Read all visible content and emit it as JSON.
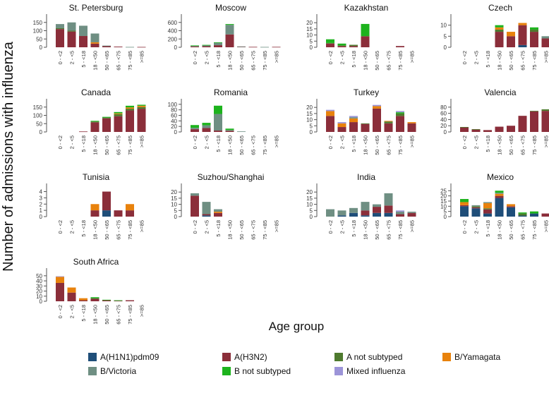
{
  "chart_data": {
    "type": "bar",
    "stacked": true,
    "ylabel": "Number of admissions with influenza",
    "xlabel": "Age group",
    "categories": [
      "0 - <2",
      "2 - <5",
      "5 - <18",
      "18 - <50",
      "50 - <65",
      "65 - <75",
      "75 - <85",
      ">=85"
    ],
    "legend": [
      {
        "name": "A(H1N1)pdm09",
        "color": "#1f4e79"
      },
      {
        "name": "A(H3N2)",
        "color": "#8b2e3a"
      },
      {
        "name": "A not subtyped",
        "color": "#4e7a2e"
      },
      {
        "name": "B/Yamagata",
        "color": "#e8820c"
      },
      {
        "name": "B/Victoria",
        "color": "#6f8f83"
      },
      {
        "name": "B not subtyped",
        "color": "#1db31d"
      },
      {
        "name": "Mixed influenza",
        "color": "#9c94d8"
      }
    ],
    "panels": [
      {
        "title": "St. Petersburg",
        "ymax": 200,
        "ticks": [
          0,
          50,
          100,
          150
        ],
        "series": [
          [
            0,
            0,
            0,
            0,
            0,
            0,
            0,
            0
          ],
          [
            110,
            95,
            68,
            22,
            8,
            4,
            0,
            2
          ],
          [
            5,
            5,
            0,
            0,
            0,
            0,
            0,
            0
          ],
          [
            0,
            0,
            0,
            8,
            0,
            0,
            0,
            0
          ],
          [
            25,
            50,
            62,
            53,
            2,
            0,
            2,
            0
          ],
          [
            0,
            0,
            0,
            0,
            0,
            0,
            0,
            0
          ],
          [
            0,
            0,
            0,
            0,
            0,
            0,
            0,
            0
          ]
        ]
      },
      {
        "title": "Moscow",
        "ymax": 800,
        "ticks": [
          0,
          200,
          400,
          600
        ],
        "series": [
          [
            0,
            0,
            0,
            0,
            0,
            0,
            0,
            0
          ],
          [
            20,
            25,
            50,
            310,
            15,
            10,
            0,
            10
          ],
          [
            0,
            0,
            0,
            0,
            0,
            0,
            0,
            0
          ],
          [
            0,
            0,
            0,
            0,
            0,
            0,
            0,
            0
          ],
          [
            15,
            25,
            60,
            230,
            5,
            0,
            8,
            0
          ],
          [
            10,
            8,
            10,
            20,
            0,
            0,
            0,
            0
          ],
          [
            0,
            0,
            0,
            0,
            0,
            0,
            0,
            0
          ]
        ]
      },
      {
        "title": "Kazakhstan",
        "ymax": 27,
        "ticks": [
          0,
          5,
          10,
          15,
          20
        ],
        "series": [
          [
            0,
            0,
            0,
            0,
            0,
            0,
            0,
            0
          ],
          [
            3,
            1,
            1,
            9,
            0,
            0,
            1,
            0
          ],
          [
            0.5,
            0.5,
            1,
            0,
            0,
            0,
            0,
            0
          ],
          [
            0,
            0,
            0,
            0,
            0,
            0,
            0,
            0
          ],
          [
            0,
            0,
            0,
            0,
            0,
            0,
            0,
            0
          ],
          [
            3,
            1.5,
            0,
            10,
            0,
            0,
            0,
            0
          ],
          [
            0,
            0,
            0,
            0,
            0,
            0,
            0,
            0
          ]
        ]
      },
      {
        "title": "Czech",
        "ymax": 15,
        "ticks": [
          0,
          5,
          10
        ],
        "series": [
          [
            0,
            0,
            0,
            0,
            0,
            1,
            0,
            0
          ],
          [
            0,
            0,
            0,
            7,
            5,
            9,
            7,
            4
          ],
          [
            0,
            0,
            0,
            1,
            0,
            0,
            1,
            0
          ],
          [
            0,
            0,
            0,
            1,
            2,
            1,
            0,
            0
          ],
          [
            0,
            0,
            0,
            0,
            0,
            0,
            0,
            1
          ],
          [
            0,
            0,
            0,
            1,
            0,
            0,
            1,
            0
          ],
          [
            0,
            0,
            0,
            0,
            0,
            0,
            0,
            0
          ]
        ]
      },
      {
        "title": "Canada",
        "ymax": 200,
        "ticks": [
          0,
          50,
          100,
          150
        ],
        "series": [
          [
            0,
            0,
            0,
            0,
            0,
            0,
            0,
            0
          ],
          [
            0,
            0,
            3,
            58,
            82,
            95,
            130,
            140
          ],
          [
            0,
            0,
            0,
            5,
            5,
            12,
            10,
            10
          ],
          [
            0,
            0,
            0,
            0,
            0,
            5,
            8,
            8
          ],
          [
            0,
            0,
            0,
            0,
            0,
            0,
            0,
            0
          ],
          [
            0,
            0,
            0,
            4,
            4,
            8,
            10,
            6
          ],
          [
            0,
            0,
            0,
            0,
            0,
            0,
            0,
            0
          ]
        ]
      },
      {
        "title": "Romania",
        "ymax": 120,
        "ticks": [
          0,
          20,
          40,
          60,
          80,
          100
        ],
        "series": [
          [
            0,
            0,
            0,
            0,
            0,
            0,
            0,
            0
          ],
          [
            10,
            14,
            5,
            4,
            0,
            0,
            0,
            0
          ],
          [
            0,
            0,
            0,
            0,
            0,
            0,
            0,
            0
          ],
          [
            0,
            0,
            0,
            0,
            0,
            0,
            0,
            0
          ],
          [
            5,
            10,
            60,
            3,
            2,
            0,
            0,
            0
          ],
          [
            10,
            9,
            30,
            5,
            0,
            0,
            0,
            0
          ],
          [
            0,
            0,
            0,
            0,
            0,
            0,
            0,
            0
          ]
        ]
      },
      {
        "title": "Turkey",
        "ymax": 27,
        "ticks": [
          0,
          5,
          10,
          15,
          20
        ],
        "series": [
          [
            0,
            0,
            0,
            0,
            0,
            0,
            0,
            0
          ],
          [
            13,
            4,
            8,
            6.5,
            19,
            7,
            13,
            7
          ],
          [
            0,
            0,
            0,
            0.5,
            0,
            1.5,
            2,
            0
          ],
          [
            4,
            3,
            3,
            0,
            2,
            0.5,
            0,
            1
          ],
          [
            0,
            0,
            1,
            0,
            0,
            0,
            0,
            0
          ],
          [
            0,
            0,
            0,
            0,
            0,
            0,
            1,
            0
          ],
          [
            1,
            1,
            1,
            0,
            1,
            0,
            1,
            0
          ]
        ]
      },
      {
        "title": "Valencia",
        "ymax": 107,
        "ticks": [
          0,
          20,
          40,
          60,
          80
        ],
        "series": [
          [
            0,
            0,
            0,
            0,
            0,
            0,
            0,
            0
          ],
          [
            15,
            8,
            6,
            17,
            20,
            52,
            67,
            68
          ],
          [
            1,
            1,
            0,
            0,
            0,
            0,
            1,
            5
          ],
          [
            0,
            0,
            0,
            0,
            0,
            0,
            0,
            0
          ],
          [
            0,
            0,
            0,
            0,
            0,
            0,
            0,
            0
          ],
          [
            0,
            0,
            0,
            0,
            0,
            0,
            0,
            0
          ],
          [
            0,
            0,
            0,
            0,
            0,
            0,
            0,
            0
          ]
        ]
      },
      {
        "title": "Tunisia",
        "ymax": 5.3,
        "ticks": [
          0,
          1,
          2,
          3,
          4
        ],
        "series": [
          [
            0,
            0,
            0,
            0,
            1,
            0,
            0,
            0
          ],
          [
            0,
            0,
            0,
            1,
            3,
            1,
            1,
            0
          ],
          [
            0,
            0,
            0,
            0,
            0,
            0,
            0,
            0
          ],
          [
            0,
            0,
            0,
            1,
            0,
            0,
            1,
            0
          ],
          [
            0,
            0,
            0,
            0,
            0,
            0,
            0,
            0
          ],
          [
            0,
            0,
            0,
            0,
            0,
            0,
            0,
            0
          ],
          [
            0,
            0,
            0,
            0,
            0,
            0,
            0,
            0
          ]
        ]
      },
      {
        "title": "Suzhou/Shanghai",
        "ymax": 27,
        "ticks": [
          0,
          5,
          10,
          15,
          20
        ],
        "series": [
          [
            0,
            1,
            0,
            0,
            0,
            0,
            0,
            0
          ],
          [
            17,
            1,
            3,
            0,
            0,
            0,
            0,
            0
          ],
          [
            0,
            0,
            0,
            0,
            0,
            0,
            0,
            0
          ],
          [
            0,
            0,
            1,
            0,
            0,
            0,
            0,
            0
          ],
          [
            2,
            10,
            2,
            0,
            0,
            0,
            0,
            0
          ],
          [
            0,
            0,
            0,
            0,
            0,
            0,
            0,
            0
          ],
          [
            0,
            0,
            0,
            0,
            0,
            0,
            0,
            0
          ]
        ]
      },
      {
        "title": "India",
        "ymax": 27,
        "ticks": [
          0,
          5,
          10,
          15,
          20
        ],
        "series": [
          [
            0,
            1,
            3,
            1,
            3,
            3,
            0,
            0
          ],
          [
            0,
            0,
            0,
            4,
            5,
            6,
            2,
            3
          ],
          [
            0,
            0,
            0,
            0,
            0,
            0,
            0,
            0
          ],
          [
            0,
            0,
            0,
            0,
            0,
            0,
            0,
            0
          ],
          [
            6,
            4,
            4,
            7,
            2,
            10,
            2,
            1
          ],
          [
            0,
            0,
            0,
            0,
            0,
            0,
            0,
            0
          ],
          [
            0,
            0,
            0,
            0,
            0,
            0,
            1,
            0
          ]
        ]
      },
      {
        "title": "Mexico",
        "ymax": 32,
        "ticks": [
          0,
          5,
          10,
          15,
          20,
          25
        ],
        "series": [
          [
            10,
            8,
            3,
            18,
            9,
            1,
            3,
            0
          ],
          [
            1,
            1,
            4,
            2,
            1,
            0,
            0,
            3
          ],
          [
            0,
            1,
            1,
            0,
            0,
            2,
            0,
            0
          ],
          [
            3,
            0,
            5,
            2,
            2,
            0,
            0,
            0
          ],
          [
            0,
            1,
            1,
            1,
            0,
            0,
            0,
            0
          ],
          [
            3,
            0,
            0,
            2,
            0,
            1,
            2,
            0
          ],
          [
            0,
            0,
            0,
            0,
            0,
            0,
            0,
            0
          ]
        ]
      },
      {
        "title": "South Africa",
        "ymax": 65,
        "ticks": [
          0,
          10,
          20,
          30,
          40,
          50
        ],
        "series": [
          [
            0,
            0,
            0,
            0,
            0,
            0,
            0,
            0
          ],
          [
            36,
            17,
            2,
            5,
            2,
            1,
            2,
            0
          ],
          [
            0,
            0,
            0,
            1,
            0,
            0,
            0,
            0
          ],
          [
            12,
            10,
            4,
            0,
            0,
            0,
            0,
            0
          ],
          [
            0,
            0,
            0,
            0,
            0,
            0,
            0,
            0
          ],
          [
            0,
            0,
            0,
            2,
            1,
            1,
            0,
            0
          ],
          [
            1,
            0,
            0,
            0,
            0,
            0,
            0,
            0
          ]
        ]
      }
    ]
  }
}
